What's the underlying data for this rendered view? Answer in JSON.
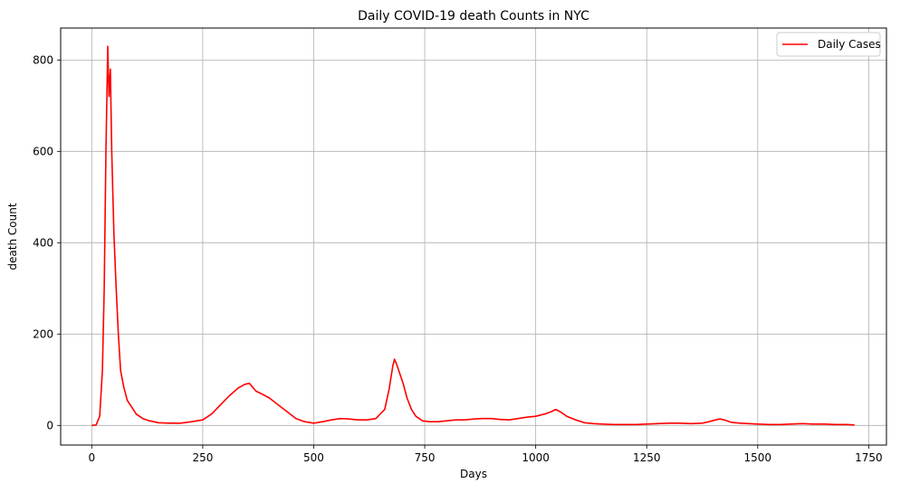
{
  "chart_data": {
    "type": "line",
    "title": "Daily COVID-19 death Counts in NYC",
    "xlabel": "Days",
    "ylabel": "death Count",
    "xlim": [
      -70,
      1790
    ],
    "ylim": [
      -43,
      870
    ],
    "xticks": [
      0,
      250,
      500,
      750,
      1000,
      1250,
      1500,
      1750
    ],
    "yticks": [
      0,
      200,
      400,
      600,
      800
    ],
    "grid": true,
    "legend_position": "top-right",
    "colors": {
      "series": "#ff0000",
      "grid": "#b0b0b0"
    },
    "series": [
      {
        "name": "Daily Cases",
        "points": [
          [
            0,
            0
          ],
          [
            10,
            1
          ],
          [
            18,
            20
          ],
          [
            24,
            120
          ],
          [
            28,
            300
          ],
          [
            32,
            600
          ],
          [
            36,
            830
          ],
          [
            39,
            720
          ],
          [
            42,
            780
          ],
          [
            45,
            600
          ],
          [
            50,
            420
          ],
          [
            55,
            300
          ],
          [
            60,
            200
          ],
          [
            65,
            120
          ],
          [
            72,
            85
          ],
          [
            80,
            55
          ],
          [
            90,
            40
          ],
          [
            100,
            25
          ],
          [
            115,
            15
          ],
          [
            130,
            10
          ],
          [
            150,
            6
          ],
          [
            175,
            5
          ],
          [
            200,
            5
          ],
          [
            225,
            8
          ],
          [
            250,
            12
          ],
          [
            270,
            25
          ],
          [
            290,
            45
          ],
          [
            310,
            65
          ],
          [
            330,
            82
          ],
          [
            345,
            90
          ],
          [
            355,
            92
          ],
          [
            370,
            75
          ],
          [
            385,
            68
          ],
          [
            400,
            60
          ],
          [
            420,
            45
          ],
          [
            440,
            30
          ],
          [
            460,
            15
          ],
          [
            480,
            8
          ],
          [
            500,
            5
          ],
          [
            520,
            8
          ],
          [
            540,
            12
          ],
          [
            560,
            15
          ],
          [
            580,
            14
          ],
          [
            600,
            12
          ],
          [
            620,
            12
          ],
          [
            640,
            15
          ],
          [
            660,
            35
          ],
          [
            670,
            80
          ],
          [
            678,
            130
          ],
          [
            682,
            145
          ],
          [
            688,
            130
          ],
          [
            695,
            110
          ],
          [
            702,
            90
          ],
          [
            710,
            60
          ],
          [
            720,
            35
          ],
          [
            730,
            20
          ],
          [
            745,
            10
          ],
          [
            760,
            8
          ],
          [
            780,
            8
          ],
          [
            800,
            10
          ],
          [
            820,
            12
          ],
          [
            840,
            12
          ],
          [
            860,
            14
          ],
          [
            880,
            15
          ],
          [
            900,
            15
          ],
          [
            920,
            13
          ],
          [
            940,
            12
          ],
          [
            960,
            15
          ],
          [
            980,
            18
          ],
          [
            1000,
            20
          ],
          [
            1020,
            25
          ],
          [
            1035,
            30
          ],
          [
            1045,
            35
          ],
          [
            1055,
            30
          ],
          [
            1070,
            20
          ],
          [
            1090,
            12
          ],
          [
            1110,
            6
          ],
          [
            1130,
            4
          ],
          [
            1150,
            3
          ],
          [
            1175,
            2
          ],
          [
            1200,
            2
          ],
          [
            1225,
            2
          ],
          [
            1250,
            3
          ],
          [
            1275,
            4
          ],
          [
            1300,
            5
          ],
          [
            1325,
            5
          ],
          [
            1350,
            4
          ],
          [
            1375,
            5
          ],
          [
            1390,
            8
          ],
          [
            1405,
            12
          ],
          [
            1415,
            14
          ],
          [
            1425,
            12
          ],
          [
            1440,
            7
          ],
          [
            1460,
            5
          ],
          [
            1480,
            4
          ],
          [
            1500,
            3
          ],
          [
            1525,
            2
          ],
          [
            1550,
            2
          ],
          [
            1575,
            3
          ],
          [
            1600,
            4
          ],
          [
            1625,
            3
          ],
          [
            1650,
            3
          ],
          [
            1675,
            2
          ],
          [
            1700,
            2
          ],
          [
            1718,
            1
          ]
        ]
      }
    ]
  }
}
